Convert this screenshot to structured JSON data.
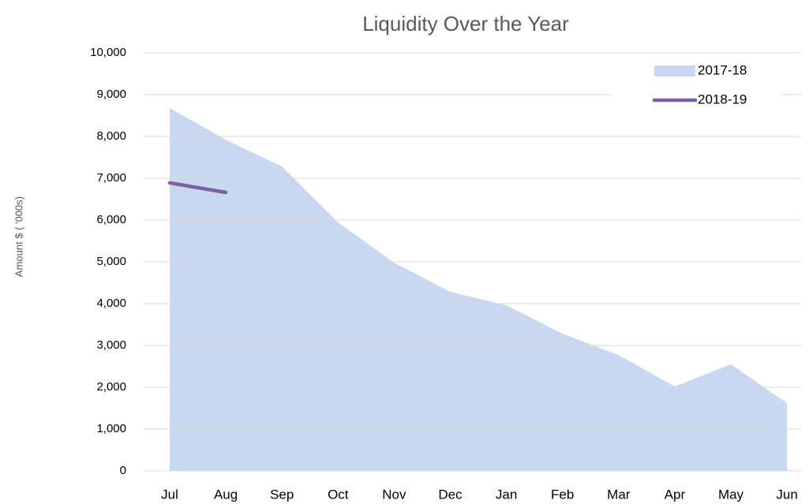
{
  "chart_data": {
    "type": "area-line",
    "title": "Liquidity Over the Year",
    "y_label": "Amount $ ( '000s)",
    "categories": [
      "Jul",
      "Aug",
      "Sep",
      "Oct",
      "Nov",
      "Dec",
      "Jan",
      "Feb",
      "Mar",
      "Apr",
      "May",
      "Jun"
    ],
    "series": [
      {
        "name": "2017-18",
        "kind": "area",
        "color": "#c7d8f0",
        "values": [
          8680,
          7920,
          7280,
          5940,
          4980,
          4280,
          3960,
          3280,
          2770,
          2020,
          2550,
          1620
        ]
      },
      {
        "name": "2018-19",
        "kind": "line",
        "color": "#7c5fa0",
        "values": [
          6890,
          6660,
          null,
          null,
          null,
          null,
          null,
          null,
          null,
          null,
          null,
          null
        ]
      }
    ],
    "ylim": [
      0,
      10000
    ],
    "yticks": [
      0,
      {
        "value": 1000,
        "label": "1,000"
      },
      {
        "value": 2000,
        "label": "2,000"
      },
      {
        "value": 3000,
        "label": "3,000"
      },
      {
        "value": 4000,
        "label": "4,000"
      },
      {
        "value": 5000,
        "label": "5,000"
      },
      {
        "value": 6000,
        "label": "6,000"
      },
      {
        "value": 7000,
        "label": "7,000"
      },
      {
        "value": 8000,
        "label": "8,000"
      },
      {
        "value": 9000,
        "label": "9,000"
      },
      {
        "value": 10000,
        "label": "10,000"
      }
    ],
    "grid": true,
    "legend": "top-right"
  }
}
